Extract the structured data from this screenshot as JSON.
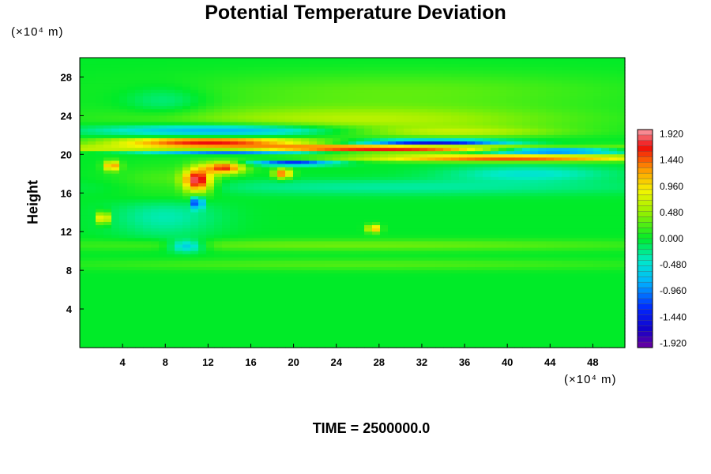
{
  "chart_data": {
    "type": "heatmap",
    "title": "Potential Temperature Deviation",
    "ylabel": "Height",
    "xlabel": "",
    "y_unit": "(×10⁴ m)",
    "x_unit": "(×10⁴ m)",
    "footer": "TIME = 2500000.0",
    "xlim": [
      0,
      51
    ],
    "ylim": [
      0,
      30
    ],
    "x_ticks": [
      4,
      8,
      12,
      16,
      20,
      24,
      28,
      32,
      36,
      40,
      44,
      48
    ],
    "y_ticks": [
      4,
      8,
      12,
      16,
      20,
      24,
      28
    ],
    "colorbar": {
      "min": -2.0,
      "max": 2.0,
      "tick_values": [
        1.92,
        1.44,
        0.96,
        0.48,
        0.0,
        -0.48,
        -0.96,
        -1.44,
        -1.92
      ],
      "tick_labels": [
        "1.920",
        "1.440",
        "0.960",
        "0.480",
        "0.000",
        "-0.480",
        "-0.960",
        "-1.440",
        "-1.920"
      ]
    },
    "features": [
      {
        "x": 25,
        "y": 20.6,
        "value": 1.9,
        "sx": 26,
        "sy": 0.35
      },
      {
        "x": 12,
        "y": 21.3,
        "value": 1.8,
        "sx": 9,
        "sy": 0.35
      },
      {
        "x": 40,
        "y": 19.6,
        "value": 1.6,
        "sx": 14,
        "sy": 0.35
      },
      {
        "x": 44,
        "y": 20.4,
        "value": -1.9,
        "sx": 7,
        "sy": 0.35
      },
      {
        "x": 33,
        "y": 21.2,
        "value": -1.7,
        "sx": 7,
        "sy": 0.3
      },
      {
        "x": 14,
        "y": 20.3,
        "value": -1.8,
        "sx": 9,
        "sy": 0.25
      },
      {
        "x": 20,
        "y": 19.1,
        "value": -1.4,
        "sx": 4,
        "sy": 0.25
      },
      {
        "x": 14,
        "y": 22.5,
        "value": -1.0,
        "sx": 12,
        "sy": 0.6
      },
      {
        "x": 26,
        "y": 23.5,
        "value": 0.6,
        "sx": 20,
        "sy": 1.4
      },
      {
        "x": 35,
        "y": 22.3,
        "value": 0.5,
        "sx": 10,
        "sy": 0.5
      },
      {
        "x": 11,
        "y": 17.3,
        "value": 1.8,
        "sx": 1.3,
        "sy": 1.2
      },
      {
        "x": 13.5,
        "y": 18.6,
        "value": 1.6,
        "sx": 1.8,
        "sy": 0.6
      },
      {
        "x": 19,
        "y": 18.0,
        "value": 1.5,
        "sx": 0.8,
        "sy": 0.5
      },
      {
        "x": 3,
        "y": 18.8,
        "value": 1.4,
        "sx": 0.7,
        "sy": 0.5
      },
      {
        "x": 2.2,
        "y": 13.4,
        "value": 1.5,
        "sx": 0.5,
        "sy": 0.6
      },
      {
        "x": 11,
        "y": 15.0,
        "value": -1.5,
        "sx": 0.5,
        "sy": 0.6
      },
      {
        "x": 10,
        "y": 10.5,
        "value": -0.8,
        "sx": 1.6,
        "sy": 0.6
      },
      {
        "x": 27.5,
        "y": 12.3,
        "value": 1.3,
        "sx": 0.6,
        "sy": 0.4
      },
      {
        "x": 8,
        "y": 14,
        "value": -0.4,
        "sx": 5,
        "sy": 2.5
      },
      {
        "x": 8,
        "y": 16.5,
        "value": 0.4,
        "sx": 5,
        "sy": 2
      },
      {
        "x": 26,
        "y": 10.6,
        "value": 0.35,
        "sx": 30,
        "sy": 0.6
      },
      {
        "x": 26,
        "y": 8.6,
        "value": 0.25,
        "sx": 30,
        "sy": 0.6
      },
      {
        "x": 30,
        "y": 16.6,
        "value": -0.3,
        "sx": 25,
        "sy": 0.8
      },
      {
        "x": 30,
        "y": 26.5,
        "value": 0.3,
        "sx": 22,
        "sy": 2
      },
      {
        "x": 8,
        "y": 25.5,
        "value": -0.3,
        "sx": 4,
        "sy": 1.5
      },
      {
        "x": 42,
        "y": 18.0,
        "value": -0.45,
        "sx": 8,
        "sy": 0.8
      }
    ]
  }
}
